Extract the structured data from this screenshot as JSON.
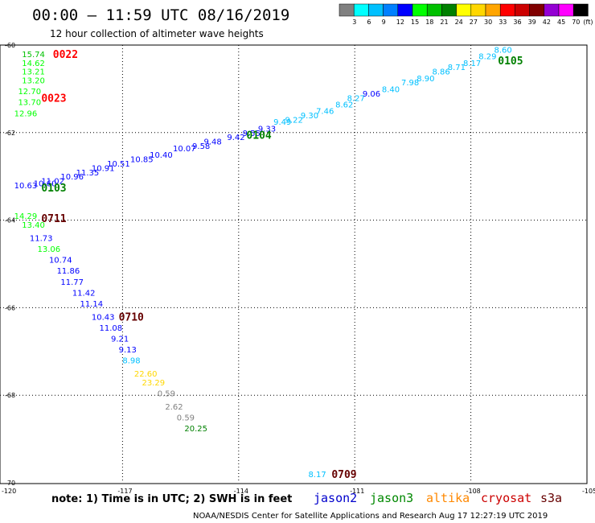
{
  "title": "00:00 – 11:59 UTC 08/16/2019",
  "subtitle": "12 hour collection of altimeter wave heights",
  "note": "note: 1) Time is in UTC; 2) SWH is in feet",
  "credit": "NOAA/NESDIS Center for Satellite Applications and Research    Aug 17 12:27:19 UTC 2019",
  "satellites": [
    {
      "name": "jason2",
      "color": "#0000cc"
    },
    {
      "name": "jason3",
      "color": "#008800"
    },
    {
      "name": "altika",
      "color": "#ff8800"
    },
    {
      "name": "cryosat",
      "color": "#cc0000"
    },
    {
      "name": "s3a",
      "color": "#660000"
    }
  ],
  "colorbar": {
    "unit": "(ft)",
    "bins": [
      {
        "label": "",
        "color": "#808080"
      },
      {
        "label": "3",
        "color": "#00ffff"
      },
      {
        "label": "6",
        "color": "#00c0ff"
      },
      {
        "label": "9",
        "color": "#0080ff"
      },
      {
        "label": "12",
        "color": "#0000ff"
      },
      {
        "label": "15",
        "color": "#00ff00"
      },
      {
        "label": "18",
        "color": "#00c000"
      },
      {
        "label": "21",
        "color": "#008000"
      },
      {
        "label": "24",
        "color": "#ffff00"
      },
      {
        "label": "27",
        "color": "#ffd700"
      },
      {
        "label": "30",
        "color": "#ffa500"
      },
      {
        "label": "33",
        "color": "#ff0000"
      },
      {
        "label": "36",
        "color": "#cc0000"
      },
      {
        "label": "39",
        "color": "#800000"
      },
      {
        "label": "42",
        "color": "#9400d3"
      },
      {
        "label": "45",
        "color": "#ff00ff"
      },
      {
        "label": "70",
        "color": "#000000"
      }
    ]
  },
  "chart_data": {
    "type": "scatter",
    "xlim": [
      -120,
      -105
    ],
    "ylim": [
      -70,
      -60
    ],
    "x_ticks": [
      -120,
      -117,
      -114,
      -111,
      -108,
      -105
    ],
    "x_tick_labels": [
      "-120",
      "-117",
      "-114",
      "-111",
      "-108",
      "-105"
    ],
    "y_ticks": [
      -60,
      -62,
      -64,
      -66,
      -68,
      -70
    ],
    "y_tick_labels": [
      "-60",
      "-62",
      "-64",
      "-66",
      "-68",
      "-70"
    ],
    "grid": "dotted",
    "points": [
      {
        "x": -119.6,
        "y": -60.2,
        "v": "15.74",
        "c": "#00c000"
      },
      {
        "x": -119.6,
        "y": -60.4,
        "v": "14.62",
        "c": "#00ff00"
      },
      {
        "x": -119.6,
        "y": -60.6,
        "v": "13.21",
        "c": "#00ff00"
      },
      {
        "x": -119.6,
        "y": -60.8,
        "v": "13.20",
        "c": "#00ff00"
      },
      {
        "x": -119.7,
        "y": -61.05,
        "v": "12.70",
        "c": "#00ff00"
      },
      {
        "x": -119.7,
        "y": -61.3,
        "v": "13.70",
        "c": "#00ff00"
      },
      {
        "x": -119.8,
        "y": -61.55,
        "v": "12.96",
        "c": "#00ff00"
      },
      {
        "x": -119.8,
        "y": -63.2,
        "v": "10.63",
        "c": "#0000ff"
      },
      {
        "x": -119.3,
        "y": -63.15,
        "v": "10.60",
        "c": "#0000ff"
      },
      {
        "x": -119.1,
        "y": -63.1,
        "v": "11.02",
        "c": "#0000ff"
      },
      {
        "x": -118.6,
        "y": -63.0,
        "v": "10.96",
        "c": "#0000ff"
      },
      {
        "x": -118.2,
        "y": -62.9,
        "v": "11.35",
        "c": "#0000ff"
      },
      {
        "x": -117.8,
        "y": -62.8,
        "v": "10.91",
        "c": "#0000ff"
      },
      {
        "x": -117.4,
        "y": -62.7,
        "v": "10.51",
        "c": "#0000ff"
      },
      {
        "x": -116.8,
        "y": -62.6,
        "v": "10.85",
        "c": "#0000ff"
      },
      {
        "x": -116.3,
        "y": -62.5,
        "v": "10.40",
        "c": "#0000ff"
      },
      {
        "x": -115.7,
        "y": -62.35,
        "v": "10.07",
        "c": "#0000ff"
      },
      {
        "x": -115.2,
        "y": -62.3,
        "v": "9.58",
        "c": "#0000ff"
      },
      {
        "x": -114.9,
        "y": -62.2,
        "v": "9.48",
        "c": "#0000ff"
      },
      {
        "x": -114.3,
        "y": -62.1,
        "v": "9.42",
        "c": "#0000ff"
      },
      {
        "x": -113.9,
        "y": -62.0,
        "v": "9.55",
        "c": "#0000ff"
      },
      {
        "x": -113.5,
        "y": -61.9,
        "v": "9.33",
        "c": "#0000ff"
      },
      {
        "x": -113.1,
        "y": -61.75,
        "v": "9.49",
        "c": "#00c0ff"
      },
      {
        "x": -112.8,
        "y": -61.7,
        "v": "9.22",
        "c": "#00c0ff"
      },
      {
        "x": -112.4,
        "y": -61.6,
        "v": "9.30",
        "c": "#00c0ff"
      },
      {
        "x": -112.0,
        "y": -61.5,
        "v": "7.46",
        "c": "#00c0ff"
      },
      {
        "x": -111.5,
        "y": -61.35,
        "v": "8.62",
        "c": "#00c0ff"
      },
      {
        "x": -111.2,
        "y": -61.2,
        "v": "8.27",
        "c": "#00c0ff"
      },
      {
        "x": -110.8,
        "y": -61.1,
        "v": "9.06",
        "c": "#0000ff"
      },
      {
        "x": -110.3,
        "y": -61.0,
        "v": "8.40",
        "c": "#00c0ff"
      },
      {
        "x": -109.8,
        "y": -60.85,
        "v": "7.98",
        "c": "#00c0ff"
      },
      {
        "x": -109.4,
        "y": -60.75,
        "v": "8.90",
        "c": "#00c0ff"
      },
      {
        "x": -109.0,
        "y": -60.6,
        "v": "8.86",
        "c": "#00c0ff"
      },
      {
        "x": -108.6,
        "y": -60.5,
        "v": "8.71",
        "c": "#00c0ff"
      },
      {
        "x": -108.2,
        "y": -60.4,
        "v": "8.17",
        "c": "#00c0ff"
      },
      {
        "x": -107.8,
        "y": -60.25,
        "v": "8.29",
        "c": "#00c0ff"
      },
      {
        "x": -107.4,
        "y": -60.1,
        "v": "8.60",
        "c": "#00c0ff"
      },
      {
        "x": -119.8,
        "y": -63.9,
        "v": "14.29",
        "c": "#00ff00"
      },
      {
        "x": -119.6,
        "y": -64.1,
        "v": "13.40",
        "c": "#00ff00"
      },
      {
        "x": -119.4,
        "y": -64.4,
        "v": "11.73",
        "c": "#0000ff"
      },
      {
        "x": -119.2,
        "y": -64.65,
        "v": "13.06",
        "c": "#00ff00"
      },
      {
        "x": -118.9,
        "y": -64.9,
        "v": "10.74",
        "c": "#0000ff"
      },
      {
        "x": -118.7,
        "y": -65.15,
        "v": "11.86",
        "c": "#0000ff"
      },
      {
        "x": -118.6,
        "y": -65.4,
        "v": "11.77",
        "c": "#0000ff"
      },
      {
        "x": -118.3,
        "y": -65.65,
        "v": "11.42",
        "c": "#0000ff"
      },
      {
        "x": -118.1,
        "y": -65.9,
        "v": "11.14",
        "c": "#0000ff"
      },
      {
        "x": -117.8,
        "y": -66.2,
        "v": "10.43",
        "c": "#0000ff"
      },
      {
        "x": -117.6,
        "y": -66.45,
        "v": "11.08",
        "c": "#0000ff"
      },
      {
        "x": -117.3,
        "y": -66.7,
        "v": "9.21",
        "c": "#0000ff"
      },
      {
        "x": -117.1,
        "y": -66.95,
        "v": "9.13",
        "c": "#0000ff"
      },
      {
        "x": -117.0,
        "y": -67.2,
        "v": "8.98",
        "c": "#00c0ff"
      },
      {
        "x": -116.7,
        "y": -67.5,
        "v": "22.60",
        "c": "#ffd700"
      },
      {
        "x": -116.5,
        "y": -67.7,
        "v": "23.29",
        "c": "#ffd700"
      },
      {
        "x": -116.1,
        "y": -67.95,
        "v": "0.59",
        "c": "#808080"
      },
      {
        "x": -115.9,
        "y": -68.25,
        "v": "2.62",
        "c": "#808080"
      },
      {
        "x": -115.6,
        "y": -68.5,
        "v": "0.59",
        "c": "#808080"
      },
      {
        "x": -115.4,
        "y": -68.75,
        "v": "20.25",
        "c": "#008000"
      },
      {
        "x": -112.2,
        "y": -69.8,
        "v": "8.17",
        "c": "#00c0ff"
      }
    ],
    "pass_labels": [
      {
        "x": -118.8,
        "y": -60.2,
        "label": "0022",
        "c": "#ff0000"
      },
      {
        "x": -119.1,
        "y": -61.2,
        "label": "0023",
        "c": "#ff0000"
      },
      {
        "x": -119.1,
        "y": -63.25,
        "label": "0103",
        "c": "#008000"
      },
      {
        "x": -113.8,
        "y": -62.05,
        "label": "0104",
        "c": "#008000"
      },
      {
        "x": -107.3,
        "y": -60.35,
        "label": "0105",
        "c": "#008000"
      },
      {
        "x": -119.1,
        "y": -63.95,
        "label": "0711",
        "c": "#660000"
      },
      {
        "x": -117.1,
        "y": -66.2,
        "label": "0710",
        "c": "#660000"
      },
      {
        "x": -111.6,
        "y": -69.8,
        "label": "0709",
        "c": "#660000"
      }
    ]
  }
}
